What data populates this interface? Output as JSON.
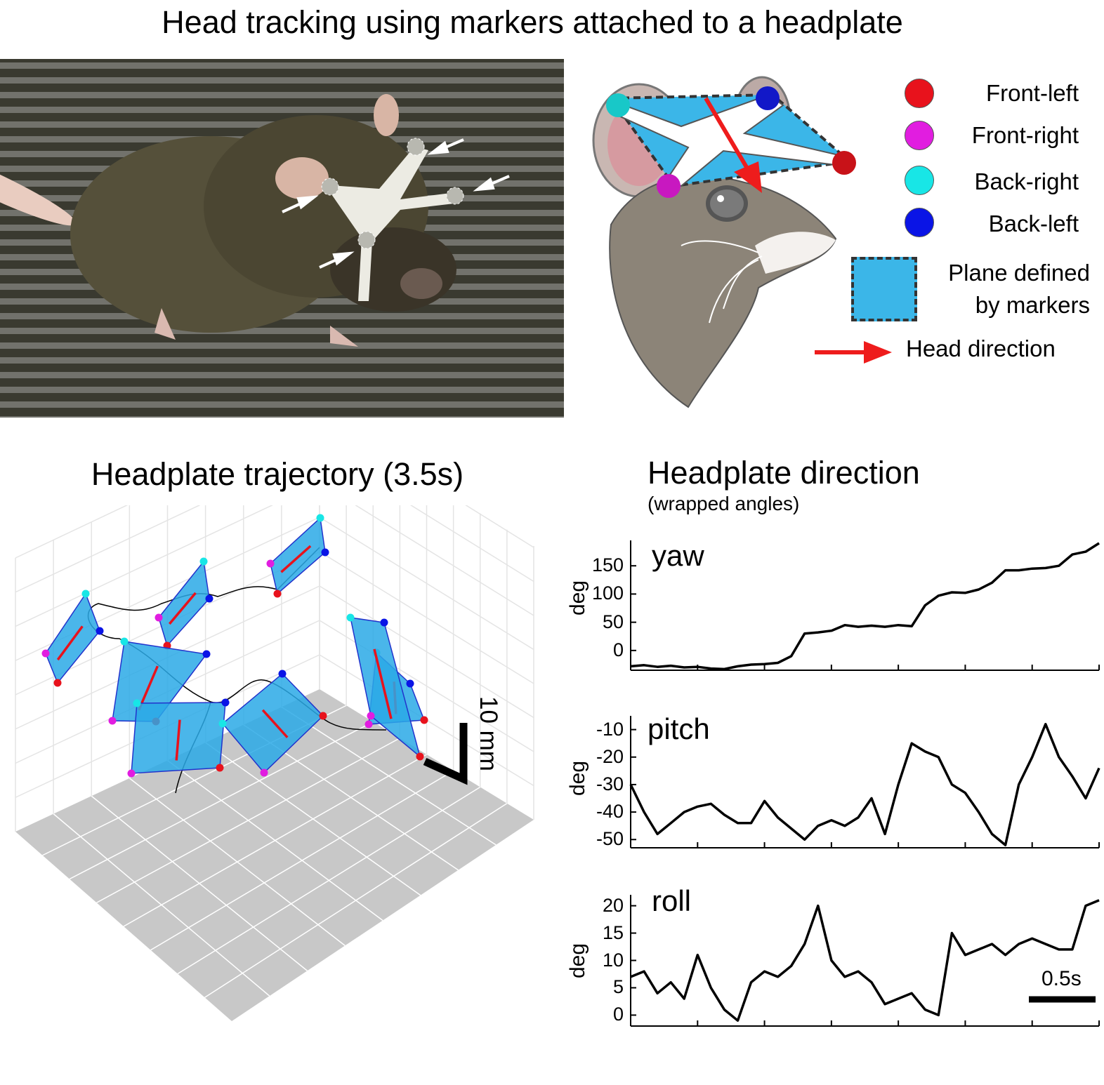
{
  "title": "Head tracking using markers attached to a headplate",
  "legend": {
    "markers": [
      {
        "label": "Front-left",
        "color": "#e8121c"
      },
      {
        "label": "Front-right",
        "color": "#e11de0"
      },
      {
        "label": "Back-right",
        "color": "#18e6e6"
      },
      {
        "label": "Back-left",
        "color": "#0a14e6"
      }
    ],
    "plane_label_line1": "Plane defined",
    "plane_label_line2": "by markers",
    "plane_color": "#3bb6e8",
    "head_direction_label": "Head direction",
    "head_direction_color": "#ee1c1c"
  },
  "trajectory": {
    "title": "Headplate trajectory (3.5s)",
    "scale_label": "10 mm"
  },
  "direction": {
    "title": "Headplate direction",
    "subtitle": "(wrapped angles)",
    "scale_bar_label": "0.5s"
  },
  "chart_data": [
    {
      "type": "line",
      "title": "yaw",
      "ylabel": "deg",
      "yticks": [
        0,
        50,
        100,
        150
      ],
      "ylim": [
        -35,
        195
      ],
      "xlim": [
        0,
        3.5
      ],
      "series": [
        {
          "x": [
            0,
            0.1,
            0.2,
            0.3,
            0.4,
            0.5,
            0.6,
            0.7,
            0.8,
            0.9,
            1.0,
            1.1,
            1.2,
            1.3,
            1.4,
            1.5,
            1.6,
            1.7,
            1.8,
            1.9,
            2.0,
            2.1,
            2.2,
            2.3,
            2.4,
            2.5,
            2.6,
            2.7,
            2.8,
            2.9,
            3.0,
            3.1,
            3.2,
            3.3,
            3.4,
            3.5
          ],
          "y": [
            -28,
            -26,
            -29,
            -27,
            -30,
            -29,
            -32,
            -33,
            -28,
            -25,
            -24,
            -22,
            -10,
            30,
            32,
            35,
            45,
            42,
            44,
            42,
            45,
            43,
            80,
            97,
            103,
            102,
            108,
            120,
            142,
            142,
            145,
            146,
            150,
            170,
            175,
            190
          ]
        }
      ]
    },
    {
      "type": "line",
      "title": "pitch",
      "ylabel": "deg",
      "yticks": [
        -10,
        -20,
        -30,
        -40,
        -50
      ],
      "ylim": [
        -53,
        -5
      ],
      "xlim": [
        0,
        3.5
      ],
      "series": [
        {
          "x": [
            0,
            0.1,
            0.2,
            0.3,
            0.4,
            0.5,
            0.6,
            0.7,
            0.8,
            0.9,
            1.0,
            1.1,
            1.2,
            1.3,
            1.4,
            1.5,
            1.6,
            1.7,
            1.8,
            1.9,
            2.0,
            2.1,
            2.2,
            2.3,
            2.4,
            2.5,
            2.6,
            2.7,
            2.8,
            2.9,
            3.0,
            3.1,
            3.2,
            3.3,
            3.4,
            3.5
          ],
          "y": [
            -30,
            -40,
            -48,
            -44,
            -40,
            -38,
            -37,
            -41,
            -44,
            -44,
            -36,
            -42,
            -46,
            -50,
            -45,
            -43,
            -45,
            -42,
            -35,
            -48,
            -30,
            -15,
            -18,
            -20,
            -30,
            -33,
            -40,
            -48,
            -52,
            -30,
            -20,
            -8,
            -20,
            -27,
            -35,
            -24
          ]
        }
      ]
    },
    {
      "type": "line",
      "title": "roll",
      "ylabel": "deg",
      "yticks": [
        0,
        5,
        10,
        15,
        20
      ],
      "ylim": [
        -2,
        22
      ],
      "xlim": [
        0,
        3.5
      ],
      "series": [
        {
          "x": [
            0,
            0.1,
            0.2,
            0.3,
            0.4,
            0.5,
            0.6,
            0.7,
            0.8,
            0.9,
            1.0,
            1.1,
            1.2,
            1.3,
            1.4,
            1.5,
            1.6,
            1.7,
            1.8,
            1.9,
            2.0,
            2.1,
            2.2,
            2.3,
            2.4,
            2.5,
            2.6,
            2.7,
            2.8,
            2.9,
            3.0,
            3.1,
            3.2,
            3.3,
            3.4,
            3.5
          ],
          "y": [
            7,
            8,
            4,
            6,
            3,
            11,
            5,
            1,
            -1,
            6,
            8,
            7,
            9,
            13,
            20,
            10,
            7,
            8,
            6,
            2,
            3,
            4,
            1,
            0,
            15,
            11,
            12,
            13,
            11,
            13,
            14,
            13,
            12,
            12,
            20,
            21
          ]
        }
      ]
    }
  ]
}
